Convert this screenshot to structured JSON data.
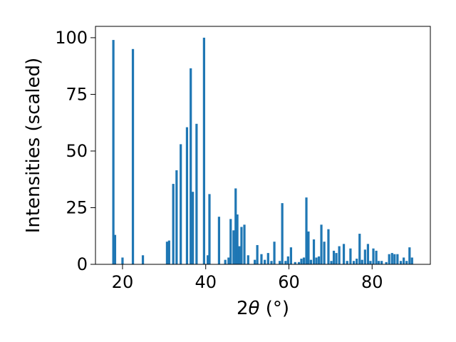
{
  "chart_data": {
    "type": "bar",
    "title": "",
    "xlabel": "2θ (°)",
    "ylabel": "Intensities (scaled)",
    "xlim": [
      13.5,
      94
    ],
    "ylim": [
      0,
      105
    ],
    "grid": false,
    "bar_color": "#1f77b4",
    "bar_width_deg": 0.55,
    "xticks": [
      20,
      40,
      60,
      80
    ],
    "xtick_labels": [
      "20",
      "40",
      "60",
      "80"
    ],
    "yticks": [
      0,
      25,
      50,
      75,
      100
    ],
    "ytick_labels": [
      "0",
      "25",
      "50",
      "75",
      "100"
    ],
    "x": [
      17.8,
      18.2,
      20.0,
      22.5,
      24.9,
      30.7,
      31.2,
      32.2,
      33.0,
      34.0,
      35.5,
      36.4,
      36.9,
      37.8,
      39.6,
      40.5,
      40.9,
      43.2,
      44.7,
      45.5,
      46.0,
      46.7,
      47.2,
      47.6,
      48.1,
      48.6,
      49.3,
      50.2,
      51.8,
      52.4,
      53.4,
      54.2,
      55.0,
      55.8,
      56.5,
      57.8,
      58.4,
      59.2,
      59.8,
      60.5,
      61.5,
      62.4,
      63.0,
      63.6,
      64.2,
      64.7,
      65.3,
      66.0,
      66.6,
      67.2,
      67.8,
      68.5,
      69.5,
      70.2,
      70.8,
      71.4,
      72.1,
      73.2,
      74.0,
      74.8,
      75.6,
      76.3,
      77.0,
      77.6,
      78.3,
      79.0,
      79.6,
      80.3,
      81.0,
      81.6,
      82.3,
      83.4,
      84.1,
      84.8,
      85.4,
      86.1,
      86.9,
      87.6,
      88.3,
      89.0,
      89.6
    ],
    "values": [
      99,
      13,
      3,
      95,
      4,
      10,
      10.5,
      35.5,
      41.5,
      53,
      60.5,
      86.5,
      32,
      62,
      100,
      4,
      31,
      21,
      2,
      3,
      20,
      15,
      33.5,
      22,
      8,
      16.5,
      17.5,
      4,
      2,
      8.5,
      4.5,
      2,
      5,
      1.5,
      10,
      1.5,
      27,
      1.5,
      3.5,
      7.5,
      1,
      1,
      2.5,
      3,
      29.5,
      14.5,
      2,
      11,
      3,
      3.5,
      17.5,
      10,
      15.5,
      1.5,
      6,
      5,
      8,
      9,
      1.5,
      7,
      1.5,
      2.5,
      13.5,
      2,
      6.5,
      9,
      1.5,
      7,
      6,
      1.5,
      1.5,
      1,
      4.5,
      5,
      4.5,
      4.5,
      1.5,
      3,
      1.5,
      7.5,
      3
    ]
  }
}
